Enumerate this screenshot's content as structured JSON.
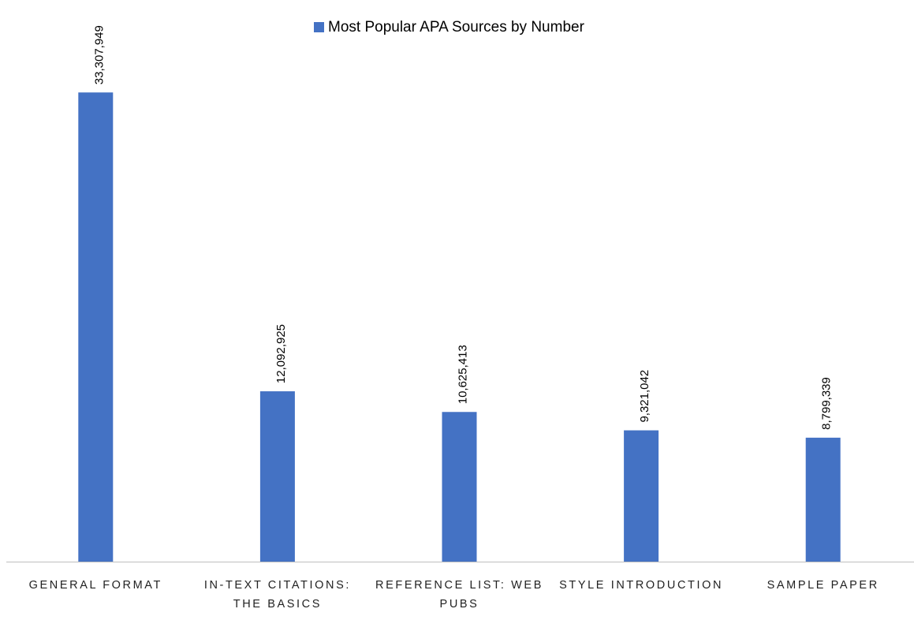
{
  "chart_data": {
    "type": "bar",
    "categories": [
      "GENERAL FORMAT",
      "IN-TEXT CITATIONS: THE BASICS",
      "REFERENCE LIST: WEB PUBS",
      "STYLE INTRODUCTION",
      "SAMPLE PAPER"
    ],
    "series": [
      {
        "name": "Most Popular APA Sources by Number",
        "color": "#4472c4",
        "values": [
          33307949,
          12092925,
          10625413,
          9321042,
          8799339
        ],
        "value_labels": [
          "33,307,949",
          "12,092,925",
          "10,625,413",
          "9,321,042",
          "8,799,339"
        ]
      }
    ],
    "ylim": [
      0,
      35000000
    ],
    "legend": "top"
  }
}
